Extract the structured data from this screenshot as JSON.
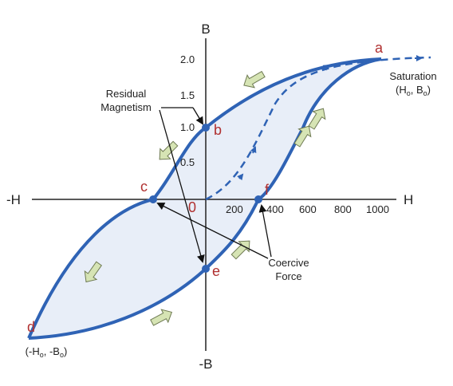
{
  "axes": {
    "x_positive": "H",
    "x_negative": "-H",
    "y_positive": "B",
    "y_negative": "-B",
    "origin": "0"
  },
  "x_ticks": [
    "200",
    "400",
    "600",
    "800",
    "1000"
  ],
  "y_ticks": [
    "2.0",
    "1.5",
    "1.0",
    "0.5"
  ],
  "points": {
    "a": "a",
    "b": "b",
    "c": "c",
    "d": "d",
    "e": "e",
    "f": "f"
  },
  "annotations": {
    "saturation_title": "Saturation",
    "saturation_coords": {
      "open": "(H",
      "h_sub": "o",
      "mid": ", B",
      "b_sub": "o",
      "close": ")"
    },
    "neg_saturation_coords": {
      "open": "(-H",
      "h_sub": "o",
      "mid": ", -B",
      "b_sub": "o",
      "close": ")"
    },
    "residual_line1": "Residual",
    "residual_line2": "Magnetism",
    "coercive_line1": "Coercive",
    "coercive_line2": "Force"
  },
  "colors": {
    "curve": "#2f63b5",
    "fill": "#e8eef8",
    "arrow_fill": "#d6e4b4",
    "arrow_stroke": "#6e7a52",
    "point_label": "#b03030",
    "axis": "#222222"
  }
}
